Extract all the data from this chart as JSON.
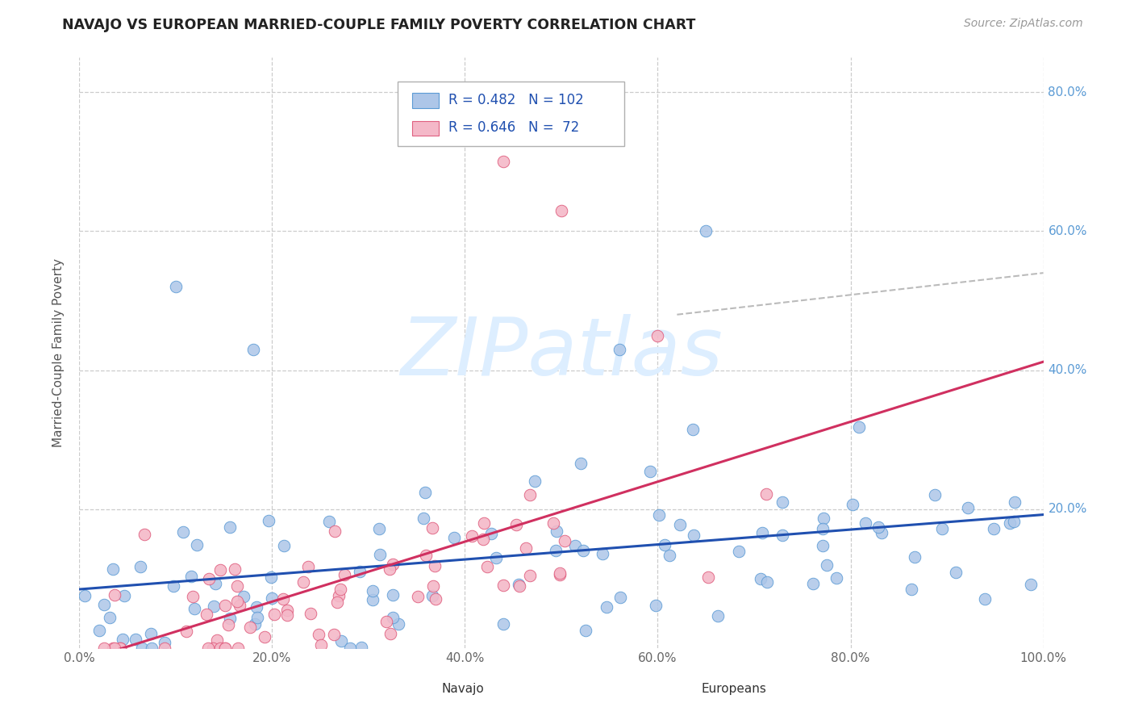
{
  "title": "NAVAJO VS EUROPEAN MARRIED-COUPLE FAMILY POVERTY CORRELATION CHART",
  "source": "Source: ZipAtlas.com",
  "ylabel": "Married-Couple Family Poverty",
  "xlim": [
    0.0,
    1.0
  ],
  "ylim": [
    0.0,
    0.85
  ],
  "xtick_vals": [
    0.0,
    0.2,
    0.4,
    0.6,
    0.8,
    1.0
  ],
  "xtick_labels": [
    "0.0%",
    "20.0%",
    "40.0%",
    "60.0%",
    "80.0%",
    "100.0%"
  ],
  "ytick_vals": [
    0.2,
    0.4,
    0.6,
    0.8
  ],
  "ytick_labels": [
    "20.0%",
    "40.0%",
    "60.0%",
    "80.0%"
  ],
  "navajo_color": "#adc6e8",
  "navajo_edge": "#5b9bd5",
  "europeans_color": "#f4b8c8",
  "europeans_edge": "#e06080",
  "trend_navajo_color": "#2050b0",
  "trend_europeans_color": "#d03060",
  "dashed_line_color": "#bbbbbb",
  "ytick_color": "#5b9bd5",
  "xtick_color": "#666666",
  "legend_color": "#2050b0",
  "watermark_text": "ZIPatlas",
  "watermark_color": "#ddeeff",
  "grid_color": "#cccccc",
  "bg_color": "#ffffff",
  "navajo_n": 102,
  "europeans_n": 72,
  "navajo_R": 0.482,
  "europeans_R": 0.646,
  "navajo_seed": 42,
  "europeans_seed": 7,
  "legend_R_nav": "0.482",
  "legend_N_nav": "102",
  "legend_R_eur": "0.646",
  "legend_N_eur": " 72"
}
